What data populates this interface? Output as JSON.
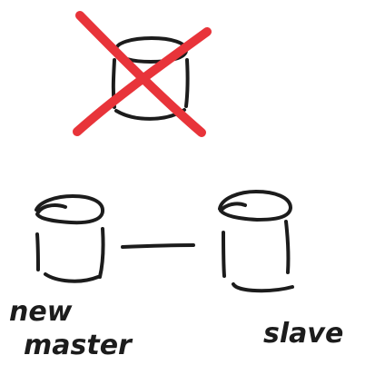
{
  "colors": {
    "ink": "#1c1c1c",
    "cross": "#e8343a",
    "background": "#ffffff"
  },
  "nodes": {
    "removed_db": {
      "label": "",
      "crossed_out": true
    },
    "new_master": {
      "label_line1": "new",
      "label_line2": "master"
    },
    "slave": {
      "label": "slave"
    }
  },
  "connections": [
    {
      "from": "new_master",
      "to": "slave"
    }
  ]
}
